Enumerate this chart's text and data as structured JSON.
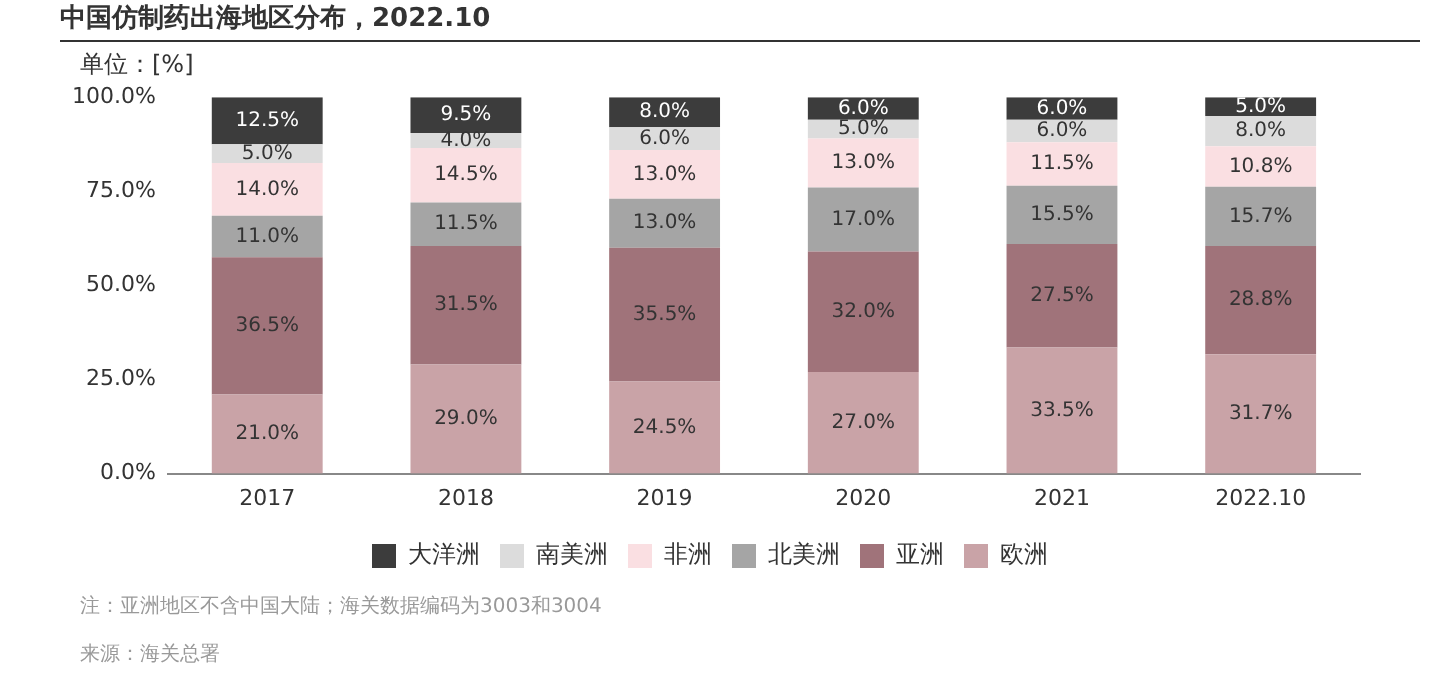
{
  "chart_data": {
    "type": "bar",
    "title": "中国仿制药出海地区分布，2022.10",
    "ylabel": "单位：[%]",
    "categories": [
      "2017",
      "2018",
      "2019",
      "2020",
      "2021",
      "2022.10"
    ],
    "stacked": true,
    "ylim": [
      0,
      100
    ],
    "yticks": [
      {
        "value": 0,
        "label": "0.0%"
      },
      {
        "value": 25,
        "label": "25.0%"
      },
      {
        "value": 50,
        "label": "50.0%"
      },
      {
        "value": 75,
        "label": "75.0%"
      },
      {
        "value": 100,
        "label": "100.0%"
      }
    ],
    "grid": false,
    "legend": "bottom",
    "series": [
      {
        "name": "欧洲",
        "color": "#c9a3a7",
        "values": [
          21.0,
          29.0,
          24.5,
          27.0,
          33.5,
          31.7
        ],
        "value_labels": [
          "21.0%",
          "29.0%",
          "24.5%",
          "27.0%",
          "33.5%",
          "31.7%"
        ]
      },
      {
        "name": "亚洲",
        "color": "#a0737a",
        "values": [
          36.5,
          31.5,
          35.5,
          32.0,
          27.5,
          28.8
        ],
        "value_labels": [
          "36.5%",
          "31.5%",
          "35.5%",
          "32.0%",
          "27.5%",
          "28.8%"
        ]
      },
      {
        "name": "北美洲",
        "color": "#a5a5a5",
        "values": [
          11.0,
          11.5,
          13.0,
          17.0,
          15.5,
          15.7
        ],
        "value_labels": [
          "11.0%",
          "11.5%",
          "13.0%",
          "17.0%",
          "15.5%",
          "15.7%"
        ]
      },
      {
        "name": "非洲",
        "color": "#fadfe2",
        "values": [
          14.0,
          14.5,
          13.0,
          13.0,
          11.5,
          10.8
        ],
        "value_labels": [
          "14.0%",
          "14.5%",
          "13.0%",
          "13.0%",
          "11.5%",
          "10.8%"
        ]
      },
      {
        "name": "南美洲",
        "color": "#dcdcdc",
        "values": [
          5.0,
          4.0,
          6.0,
          5.0,
          6.0,
          8.0
        ],
        "value_labels": [
          "5.0%",
          "4.0%",
          "6.0%",
          "5.0%",
          "6.0%",
          "8.0%"
        ]
      },
      {
        "name": "大洋洲",
        "color": "#3c3c3c",
        "values": [
          12.5,
          9.5,
          8.0,
          6.0,
          6.0,
          5.0
        ],
        "value_labels": [
          "12.5%",
          "9.5%",
          "8.0%",
          "6.0%",
          "6.0%",
          "5.0%"
        ]
      }
    ],
    "annotations": [
      "注：亚洲地区不含中国大陆；海关数据编码为3003和3004",
      "来源：海关总署"
    ]
  }
}
